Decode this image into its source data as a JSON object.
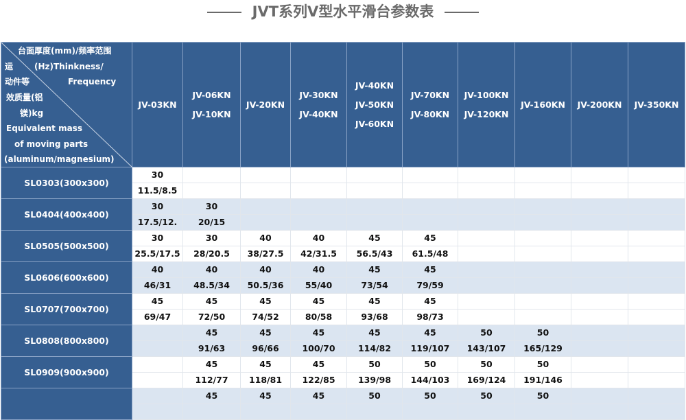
{
  "title": "JVT系列V型水平滑台参数表",
  "corner": {
    "top_lines": [
      "台面厚度(mm)/频率范围",
      "(Hz)Thinkness/",
      "Frequency"
    ],
    "left_lines": [
      "运",
      "动件等",
      "效质量(铝",
      "镁)kg",
      "Equivalent mass",
      "of moving parts",
      "(aluminum/magnesium)"
    ]
  },
  "columns": [
    [
      "JV-03KN"
    ],
    [
      "JV-06KN",
      "JV-10KN"
    ],
    [
      "JV-20KN"
    ],
    [
      "JV-30KN",
      "JV-40KN"
    ],
    [
      "JV-40KN",
      "JV-50KN",
      "JV-60KN"
    ],
    [
      "JV-70KN",
      "JV-80KN"
    ],
    [
      "JV-100KN",
      "JV-120KN"
    ],
    [
      "JV-160KN"
    ],
    [
      "JV-200KN"
    ],
    [
      "JV-350KN"
    ]
  ],
  "rows": [
    {
      "label": "SL0303(300x300)",
      "thickness": [
        "30",
        "",
        "",
        "",
        "",
        "",
        "",
        "",
        "",
        ""
      ],
      "mass": [
        "11.5/8.5",
        "",
        "",
        "",
        "",
        "",
        "",
        "",
        "",
        ""
      ]
    },
    {
      "label": "SL0404(400x400)",
      "thickness": [
        "30",
        "30",
        "",
        "",
        "",
        "",
        "",
        "",
        "",
        ""
      ],
      "mass": [
        "17.5/12.",
        "20/15",
        "",
        "",
        "",
        "",
        "",
        "",
        "",
        ""
      ]
    },
    {
      "label": "SL0505(500x500)",
      "thickness": [
        "30",
        "30",
        "40",
        "40",
        "45",
        "45",
        "",
        "",
        "",
        ""
      ],
      "mass": [
        "25.5/17.5",
        "28/20.5",
        "38/27.5",
        "42/31.5",
        "56.5/43",
        "61.5/48",
        "",
        "",
        "",
        ""
      ]
    },
    {
      "label": "SL0606(600x600)",
      "thickness": [
        "40",
        "40",
        "40",
        "40",
        "45",
        "45",
        "",
        "",
        "",
        ""
      ],
      "mass": [
        "46/31",
        "48.5/34",
        "50.5/36",
        "55/40",
        "73/54",
        "79/59",
        "",
        "",
        "",
        ""
      ]
    },
    {
      "label": "SL0707(700x700)",
      "thickness": [
        "45",
        "45",
        "45",
        "45",
        "45",
        "45",
        "",
        "",
        "",
        ""
      ],
      "mass": [
        "69/47",
        "72/50",
        "74/52",
        "80/58",
        "93/68",
        "98/73",
        "",
        "",
        "",
        ""
      ]
    },
    {
      "label": "SL0808(800x800)",
      "thickness": [
        "",
        "45",
        "45",
        "45",
        "45",
        "45",
        "50",
        "50",
        "",
        ""
      ],
      "mass": [
        "",
        "91/63",
        "96/66",
        "100/70",
        "114/82",
        "119/107",
        "143/107",
        "165/129",
        "",
        ""
      ]
    },
    {
      "label": "SL0909(900x900)",
      "thickness": [
        "",
        "45",
        "45",
        "45",
        "50",
        "50",
        "50",
        "50",
        "",
        ""
      ],
      "mass": [
        "",
        "112/77",
        "118/81",
        "122/85",
        "139/98",
        "144/103",
        "169/124",
        "191/146",
        "",
        ""
      ]
    },
    {
      "label": "",
      "thickness": [
        "",
        "45",
        "45",
        "45",
        "50",
        "50",
        "50",
        "50",
        "",
        ""
      ],
      "mass": [
        "",
        "",
        "",
        "",
        "",
        "",
        "",
        "",
        "",
        ""
      ]
    }
  ]
}
